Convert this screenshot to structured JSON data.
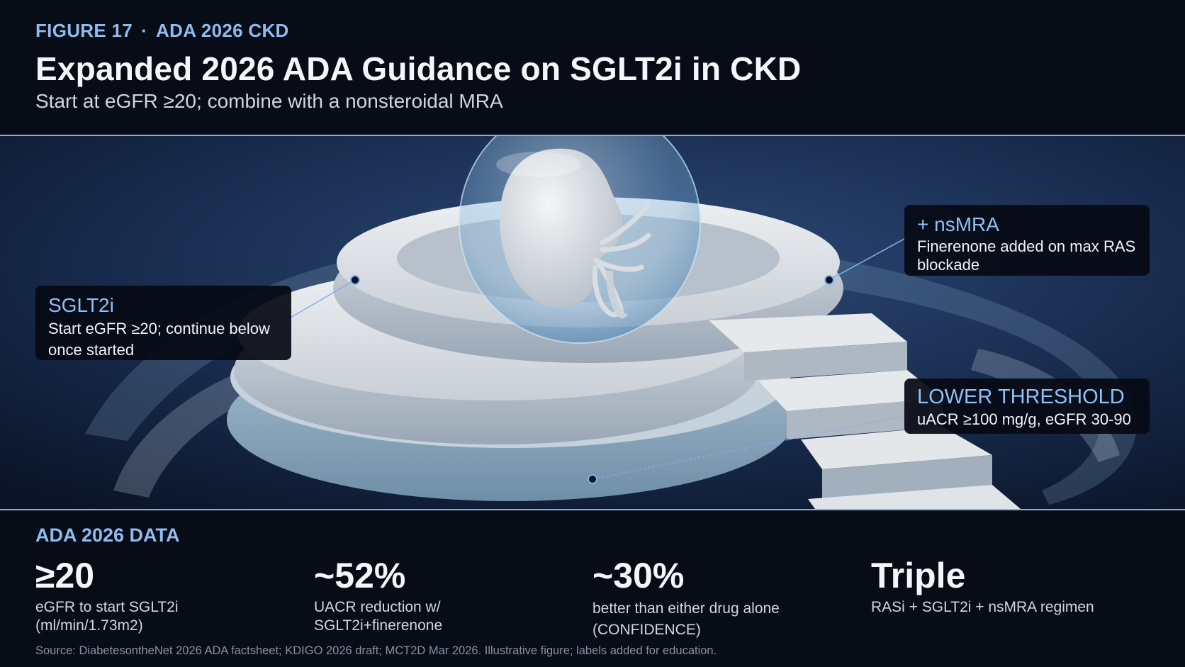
{
  "header": {
    "figure_label": "FIGURE 17",
    "separator": "·",
    "tag": "ADA 2026 CKD",
    "title": "Expanded 2026 ADA Guidance on SGLT2i in CKD",
    "subtitle": "Start at eGFR ≥20; combine with a nonsteroidal MRA"
  },
  "illustration": {
    "subject": "kidney-in-glass-sphere-on-stepped-pedestal",
    "colors": {
      "background": "#1b2f52",
      "stone": "#dfe3e6",
      "accent": "#7fb0ea"
    }
  },
  "callouts": {
    "sglt2i": {
      "title": "SGLT2i",
      "body": "Start eGFR ≥20; continue below once started"
    },
    "nsmra": {
      "title": "+ nsMRA",
      "body": "Finerenone added on max RAS blockade"
    },
    "lower_threshold": {
      "title": "LOWER THRESHOLD",
      "body": "uACR ≥100 mg/g, eGFR 30-90"
    }
  },
  "data_section": {
    "heading": "ADA 2026 DATA",
    "stats": [
      {
        "value": "≥20",
        "label": "eGFR to start SGLT2i (ml/min/1.73m2)"
      },
      {
        "value": "~52%",
        "label": "UACR reduction w/ SGLT2i+finerenone"
      },
      {
        "value": "~30%",
        "label": "better than either drug alone (CONFIDENCE)"
      },
      {
        "value": "Triple",
        "label": "RASi + SGLT2i + nsMRA regimen"
      }
    ]
  },
  "source": "Source: DiabetesontheNet 2026 ADA factsheet; KDIGO 2026 draft; MCT2D Mar 2026. Illustrative figure; labels added for education."
}
